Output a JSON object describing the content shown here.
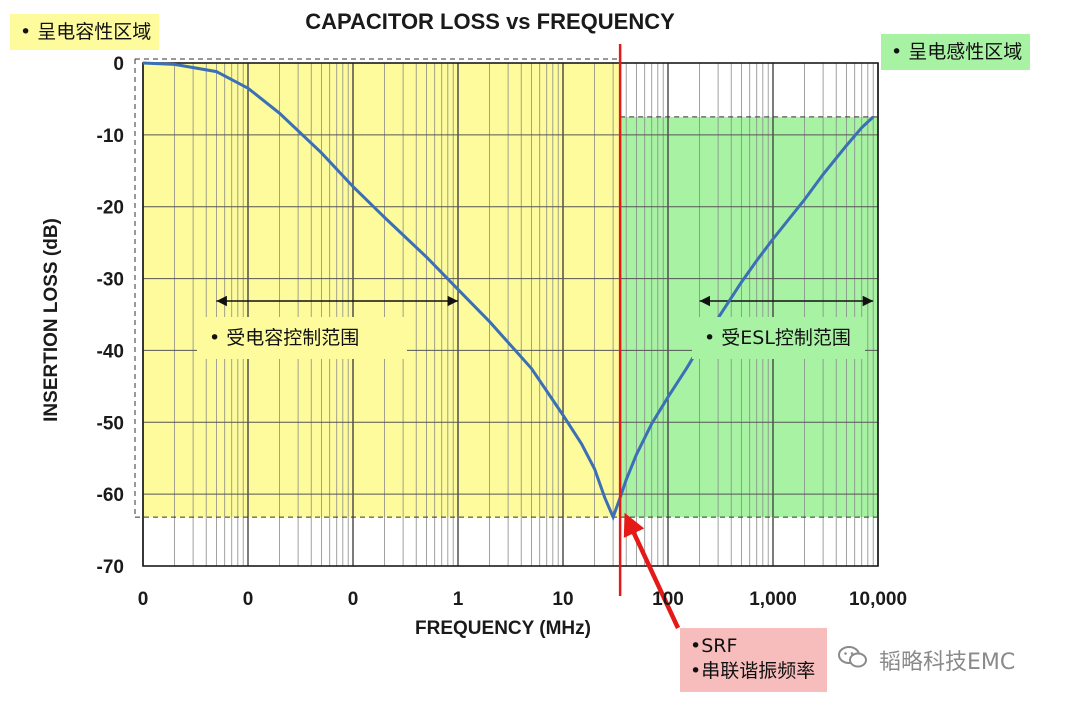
{
  "chart_data": {
    "type": "line",
    "title": "CAPACITOR LOSS vs FREQUENCY",
    "xlabel": "FREQUENCY (MHz)",
    "ylabel": "INSERTION LOSS (dB)",
    "x_scale": "log",
    "xlim": [
      0.001,
      10000
    ],
    "ylim": [
      -70,
      0
    ],
    "y_ticks": [
      0,
      -10,
      -20,
      -30,
      -40,
      -50,
      -60,
      -70
    ],
    "y_tick_labels": [
      "0",
      "-10",
      "-20",
      "-30",
      "-40",
      "-50",
      "-60",
      "-70"
    ],
    "x_ticks": [
      0.001,
      0.01,
      0.1,
      1,
      10,
      100,
      1000,
      10000
    ],
    "x_tick_labels": [
      "0",
      "0",
      "0",
      "1",
      "10",
      "100",
      "1,000",
      "10,000"
    ],
    "grid": true,
    "series": [
      {
        "color": "#3b6fb6",
        "x": [
          0.001,
          0.002,
          0.005,
          0.01,
          0.02,
          0.05,
          0.1,
          0.2,
          0.5,
          1,
          2,
          5,
          10,
          15,
          20,
          25,
          30,
          35,
          40,
          50,
          70,
          100,
          150,
          200,
          300,
          500,
          700,
          1000,
          2000,
          3000,
          5000,
          7000,
          9000
        ],
        "y": [
          0,
          -0.2,
          -1.2,
          -3.5,
          -7,
          -12.5,
          -17.2,
          -21.5,
          -27,
          -31.5,
          -36,
          -42.5,
          -49,
          -53,
          -56.5,
          -60.5,
          -63.2,
          -60.5,
          -58,
          -54.5,
          -50.2,
          -46.5,
          -42.5,
          -39.5,
          -35.5,
          -30.5,
          -27.5,
          -24.5,
          -19,
          -15.5,
          -11.5,
          -9,
          -7.5
        ]
      }
    ],
    "annotations": {
      "srf_line_x": 35,
      "capacitive_label": "呈电容性区域",
      "inductive_label": "呈电感性区域",
      "capacitance_controlled": "受电容控制范围",
      "esl_controlled": "受ESL控制范围",
      "srf_lines": [
        "SRF",
        "串联谐振频率"
      ]
    },
    "bullet": "•",
    "colors": {
      "curve": "#3b6fb6",
      "srf_line": "#e61919",
      "capacitive_region": "#fdfb9b",
      "inductive_region": "#a7f2a3",
      "srf_box": "#f7bcbc",
      "grid": "#8a8a8a"
    }
  },
  "watermark": "韬略科技EMC"
}
